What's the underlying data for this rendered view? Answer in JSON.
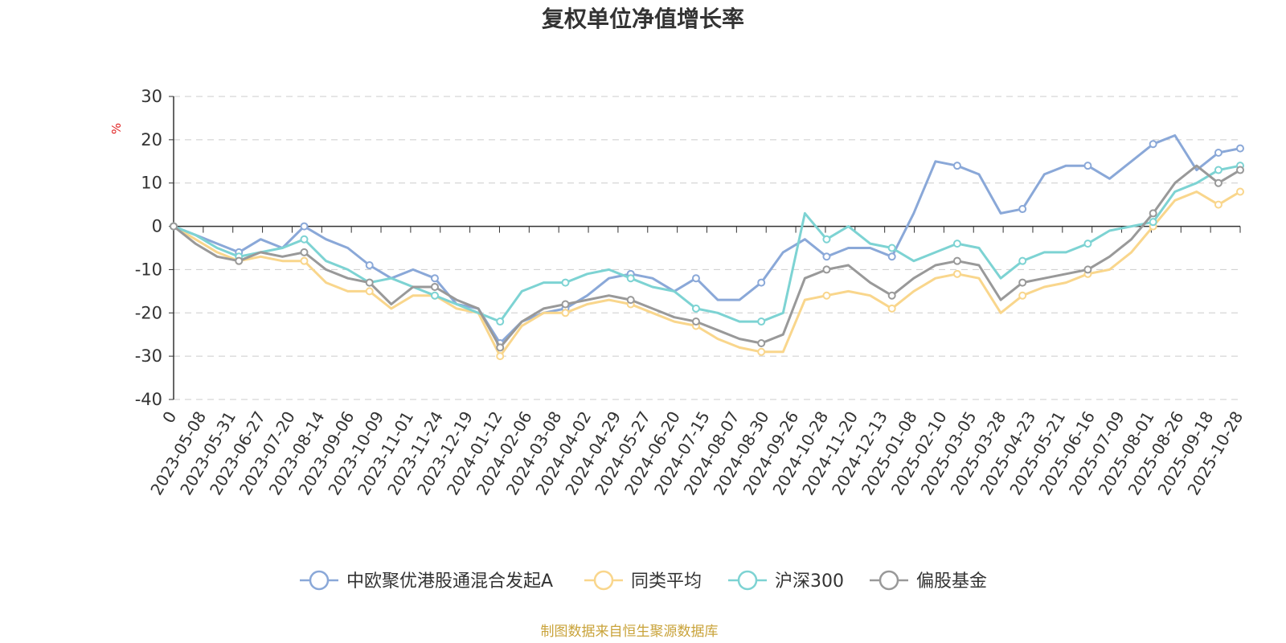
{
  "chart_data": {
    "type": "line",
    "title": "复权单位净值增长率",
    "ylabel": "%",
    "ylim": [
      -40,
      30
    ],
    "yticks": [
      30,
      20,
      10,
      0,
      -10,
      -20,
      -30,
      -40
    ],
    "x_origin_label": "0",
    "x_tick_labels": [
      "2023-05-08",
      "2023-05-31",
      "2023-06-27",
      "2023-07-20",
      "2023-08-14",
      "2023-09-06",
      "2023-10-09",
      "2023-11-01",
      "2023-11-24",
      "2023-12-19",
      "2024-01-12",
      "2024-02-06",
      "2024-03-08",
      "2024-04-02",
      "2024-04-29",
      "2024-05-27",
      "2024-06-20",
      "2024-07-15",
      "2024-08-07",
      "2024-08-30",
      "2024-09-26",
      "2024-10-28",
      "2024-11-20",
      "2024-12-13",
      "2025-01-08",
      "2025-02-10",
      "2025-03-05",
      "2025-03-28",
      "2025-04-23",
      "2025-05-21",
      "2025-06-16",
      "2025-07-09",
      "2025-08-01",
      "2025-08-26",
      "2025-09-18",
      "2025-10-28"
    ],
    "grid": true,
    "legend_position": "bottom",
    "series": [
      {
        "name": "中欧聚优港股通混合发起A",
        "color": "#8aa8d8",
        "values": [
          0,
          -2,
          -4,
          -6,
          -3,
          -5,
          0,
          -3,
          -5,
          -9,
          -12,
          -10,
          -12,
          -18,
          -19,
          -27,
          -22,
          -20,
          -19,
          -16,
          -12,
          -11,
          -12,
          -15,
          -12,
          -17,
          -17,
          -13,
          -6,
          -3,
          -7,
          -5,
          -5,
          -7,
          3,
          15,
          14,
          12,
          3,
          4,
          12,
          14,
          14,
          11,
          15,
          19,
          21,
          13,
          17,
          18
        ]
      },
      {
        "name": "同类平均",
        "color": "#f9d68c",
        "values": [
          0,
          -3,
          -6,
          -8,
          -7,
          -8,
          -8,
          -13,
          -15,
          -15,
          -19,
          -16,
          -16,
          -19,
          -20,
          -30,
          -23,
          -20,
          -20,
          -18,
          -17,
          -18,
          -20,
          -22,
          -23,
          -26,
          -28,
          -29,
          -29,
          -17,
          -16,
          -15,
          -16,
          -19,
          -15,
          -12,
          -11,
          -12,
          -20,
          -16,
          -14,
          -13,
          -11,
          -10,
          -6,
          0,
          6,
          8,
          5,
          8
        ]
      },
      {
        "name": "沪深300",
        "color": "#7dd3d3",
        "values": [
          0,
          -2,
          -5,
          -7,
          -6,
          -5,
          -3,
          -8,
          -10,
          -13,
          -12,
          -14,
          -16,
          -18,
          -20,
          -22,
          -15,
          -13,
          -13,
          -11,
          -10,
          -12,
          -14,
          -15,
          -19,
          -20,
          -22,
          -22,
          -20,
          3,
          -3,
          0,
          -4,
          -5,
          -8,
          -6,
          -4,
          -5,
          -12,
          -8,
          -6,
          -6,
          -4,
          -1,
          0,
          1,
          8,
          10,
          13,
          14
        ]
      },
      {
        "name": "偏股基金",
        "color": "#999999",
        "values": [
          0,
          -4,
          -7,
          -8,
          -6,
          -7,
          -6,
          -10,
          -12,
          -13,
          -18,
          -14,
          -14,
          -17,
          -19,
          -28,
          -22,
          -19,
          -18,
          -17,
          -16,
          -17,
          -19,
          -21,
          -22,
          -24,
          -26,
          -27,
          -25,
          -12,
          -10,
          -9,
          -13,
          -16,
          -12,
          -9,
          -8,
          -9,
          -17,
          -13,
          -12,
          -11,
          -10,
          -7,
          -3,
          3,
          10,
          14,
          10,
          13
        ]
      }
    ]
  },
  "legend": {
    "items": [
      "中欧聚优港股通混合发起A",
      "同类平均",
      "沪深300",
      "偏股基金"
    ]
  },
  "footer": {
    "source": "制图数据来自恒生聚源数据库"
  }
}
